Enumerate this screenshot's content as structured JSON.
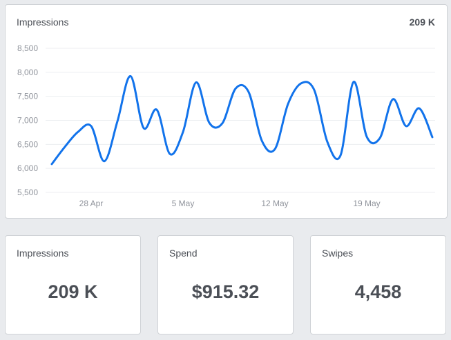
{
  "main_card": {
    "title": "Impressions",
    "total": "209 K"
  },
  "chart_data": {
    "type": "line",
    "title": "Impressions",
    "xlabel": "",
    "ylabel": "",
    "ylim": [
      5500,
      8500
    ],
    "y_ticks": [
      "8,500",
      "8,000",
      "7,500",
      "7,000",
      "6,500",
      "6,000",
      "5,500"
    ],
    "y_tick_values": [
      8500,
      8000,
      7500,
      7000,
      6500,
      6000,
      5500
    ],
    "x_tick_labels": [
      "28 Apr",
      "5 May",
      "12 May",
      "19 May"
    ],
    "x_tick_index": [
      3,
      10,
      17,
      24
    ],
    "grid": true,
    "legend": "none",
    "line_color": "#1273eb",
    "x": [
      "25 Apr",
      "26 Apr",
      "27 Apr",
      "28 Apr",
      "29 Apr",
      "30 Apr",
      "1 May",
      "2 May",
      "3 May",
      "4 May",
      "5 May",
      "6 May",
      "7 May",
      "8 May",
      "9 May",
      "10 May",
      "11 May",
      "12 May",
      "13 May",
      "14 May",
      "15 May",
      "16 May",
      "17 May",
      "18 May",
      "19 May",
      "20 May",
      "21 May",
      "22 May",
      "23 May",
      "24 May"
    ],
    "series": [
      {
        "name": "Impressions",
        "values": [
          6090,
          6450,
          6760,
          6880,
          6150,
          6980,
          7920,
          6840,
          7220,
          6300,
          6760,
          7790,
          6950,
          6940,
          7660,
          7590,
          6580,
          6400,
          7340,
          7770,
          7630,
          6550,
          6270,
          7800,
          6660,
          6630,
          7440,
          6880,
          7250,
          6650
        ]
      }
    ]
  },
  "stats": [
    {
      "label": "Impressions",
      "value": "209 K"
    },
    {
      "label": "Spend",
      "value": "$915.32"
    },
    {
      "label": "Swipes",
      "value": "4,458"
    }
  ]
}
